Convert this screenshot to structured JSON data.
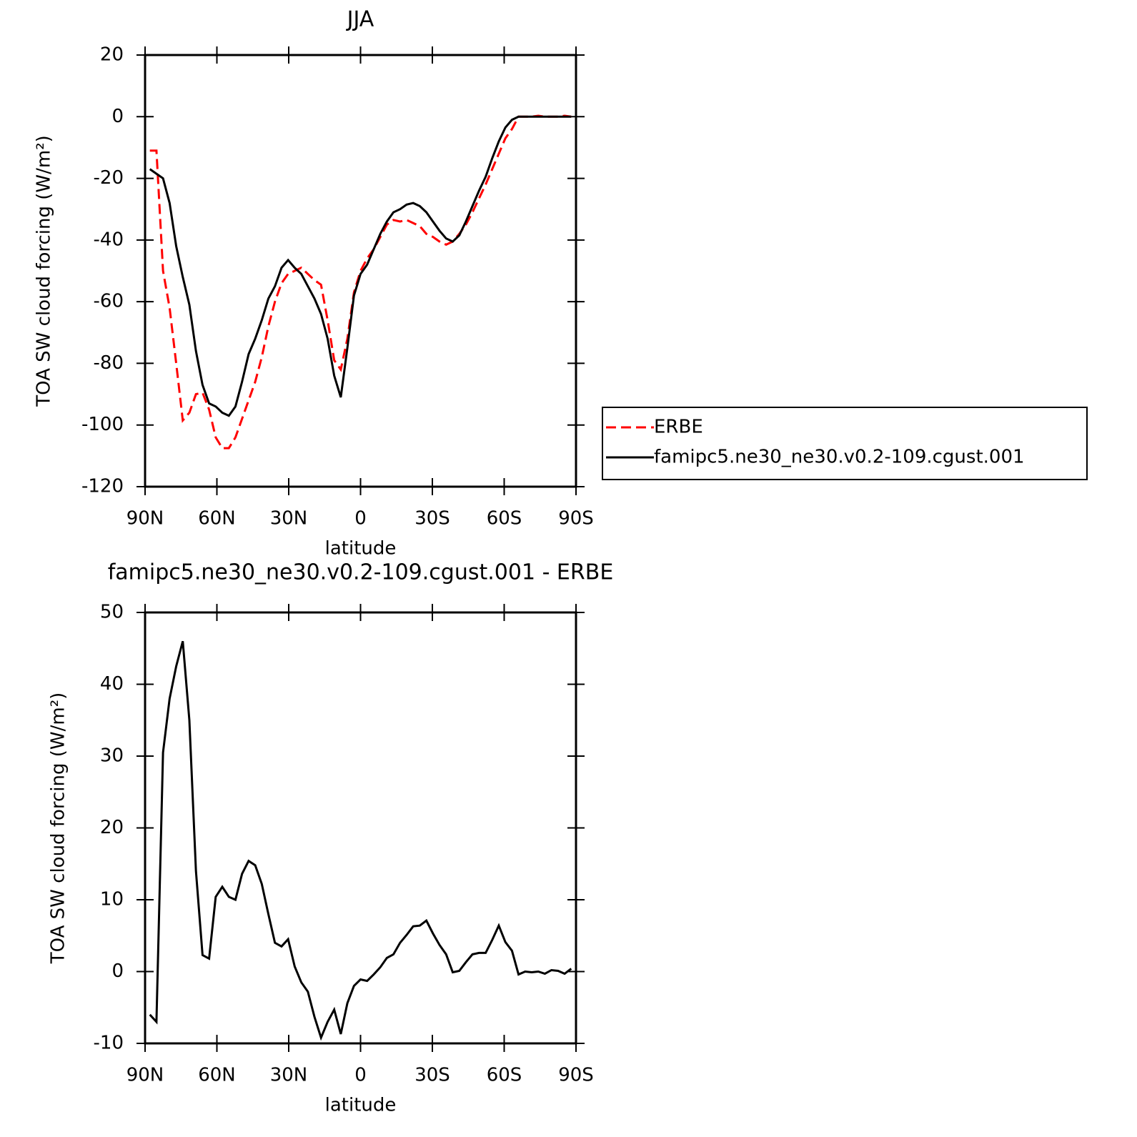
{
  "chart_data": [
    {
      "type": "line",
      "title": "JJA",
      "x_label": "latitude",
      "y_label": "TOA SW cloud forcing (W/m²)",
      "x": [
        88,
        85.25,
        82.5,
        79.75,
        77,
        74.25,
        71.5,
        68.75,
        66,
        63.25,
        60.5,
        57.75,
        55,
        52.25,
        49.5,
        46.75,
        44,
        41.25,
        38.5,
        35.75,
        33,
        30.25,
        27.5,
        24.75,
        22,
        19.25,
        16.5,
        13.75,
        11,
        8.25,
        5.5,
        2.75,
        0,
        -2.75,
        -5.5,
        -8.25,
        -11,
        -13.75,
        -16.5,
        -19.25,
        -22,
        -24.75,
        -27.5,
        -30.25,
        -33,
        -35.75,
        -38.5,
        -41.25,
        -44,
        -46.75,
        -49.5,
        -52.25,
        -55,
        -57.75,
        -60.5,
        -63.25,
        -66,
        -68.75,
        -71.5,
        -74.25,
        -77,
        -79.75,
        -82.5,
        -85.25,
        -88
      ],
      "series": [
        {
          "name": "ERBE",
          "color": "#ff0000",
          "dash": true,
          "values": [
            -11,
            -11,
            -50,
            -62,
            -80,
            -98.5,
            -96,
            -90,
            -89.5,
            -95,
            -104,
            -107.5,
            -107.5,
            -104,
            -98,
            -92,
            -86,
            -78,
            -68,
            -60,
            -54,
            -51,
            -50,
            -49,
            -51,
            -53,
            -54.5,
            -66,
            -79,
            -82,
            -72,
            -57,
            -50,
            -46,
            -43,
            -39,
            -35,
            -33.5,
            -34,
            -33.5,
            -34.5,
            -35.5,
            -38,
            -39,
            -40.5,
            -41.5,
            -40.5,
            -38,
            -35,
            -31,
            -26.5,
            -22,
            -17,
            -12,
            -7,
            -4,
            0,
            0,
            0,
            0.3,
            0,
            0,
            0,
            0.3,
            0
          ]
        },
        {
          "name": "famipc5.ne30_ne30.v0.2-109.cgust.001",
          "color": "#000000",
          "dash": false,
          "values": [
            -17,
            -18.5,
            -20,
            -28,
            -42,
            -52,
            -61,
            -76,
            -87,
            -93,
            -94,
            -96,
            -97,
            -94,
            -86,
            -77,
            -72,
            -66,
            -59,
            -55,
            -49,
            -46.5,
            -49,
            -51,
            -55,
            -59,
            -64,
            -72,
            -84,
            -91,
            -75,
            -58,
            -51,
            -48,
            -43,
            -38,
            -34,
            -31,
            -30,
            -28.5,
            -28,
            -29,
            -31,
            -34,
            -37,
            -39.5,
            -40.5,
            -38.5,
            -34,
            -29,
            -24,
            -19.5,
            -13.5,
            -8,
            -3.5,
            -1,
            0,
            0,
            0,
            0,
            0,
            0,
            0,
            0,
            0
          ]
        }
      ],
      "xlim": [
        90,
        -90
      ],
      "xticks": [
        {
          "value": 90,
          "label": "90N"
        },
        {
          "value": 60,
          "label": "60N"
        },
        {
          "value": 30,
          "label": "30N"
        },
        0,
        {
          "value": -30,
          "label": "30S"
        },
        {
          "value": -60,
          "label": "60S"
        },
        {
          "value": -90,
          "label": "90S"
        }
      ],
      "ylim": [
        -120,
        20
      ],
      "yticks": [
        -120,
        -100,
        -80,
        -60,
        -40,
        -20,
        0,
        20
      ],
      "legend": "right"
    },
    {
      "type": "line",
      "title": "famipc5.ne30_ne30.v0.2-109.cgust.001 - ERBE",
      "x_label": "latitude",
      "y_label": "TOA SW cloud forcing (W/m²)",
      "x": [
        88,
        85.25,
        82.5,
        79.75,
        77,
        74.25,
        71.5,
        68.75,
        66,
        63.25,
        60.5,
        57.75,
        55,
        52.25,
        49.5,
        46.75,
        44,
        41.25,
        38.5,
        35.75,
        33,
        30.25,
        27.5,
        24.75,
        22,
        19.25,
        16.5,
        13.75,
        11,
        8.25,
        5.5,
        2.75,
        0,
        -2.75,
        -5.5,
        -8.25,
        -11,
        -13.75,
        -16.5,
        -19.25,
        -22,
        -24.75,
        -27.5,
        -30.25,
        -33,
        -35.75,
        -38.5,
        -41.25,
        -44,
        -46.75,
        -49.5,
        -52.25,
        -55,
        -57.75,
        -60.5,
        -63.25,
        -66,
        -68.75,
        -71.5,
        -74.25,
        -77,
        -79.75,
        -82.5,
        -85.25,
        -88
      ],
      "series": [
        {
          "color": "#000000",
          "dash": false,
          "values": [
            -6,
            -7,
            30.5,
            38,
            42.5,
            46,
            35,
            14,
            2.3,
            1.8,
            10.4,
            11.8,
            10.4,
            10,
            13.6,
            15.4,
            14.8,
            12.2,
            8,
            4,
            3.5,
            4.5,
            0.7,
            -1.5,
            -2.8,
            -6.3,
            -9.2,
            -7,
            -5.3,
            -8.7,
            -4.4,
            -2,
            -1.1,
            -1.3,
            -0.4,
            0.6,
            1.9,
            2.4,
            4,
            5.1,
            6.3,
            6.4,
            7.1,
            5.3,
            3.7,
            2.4,
            -0.1,
            0.1,
            1.3,
            2.4,
            2.6,
            2.6,
            4.4,
            6.4,
            4.1,
            2.9,
            -0.4,
            0,
            -0.1,
            0,
            -0.3,
            0.2,
            0.1,
            -0.3,
            0.4
          ]
        }
      ],
      "xlim": [
        90,
        -90
      ],
      "xticks": [
        {
          "value": 90,
          "label": "90N"
        },
        {
          "value": 60,
          "label": "60N"
        },
        {
          "value": 30,
          "label": "30N"
        },
        0,
        {
          "value": -30,
          "label": "30S"
        },
        {
          "value": -60,
          "label": "60S"
        },
        {
          "value": -90,
          "label": "90S"
        }
      ],
      "ylim": [
        -10,
        50
      ],
      "yticks": [
        -10,
        0,
        10,
        20,
        30,
        40,
        50
      ]
    }
  ]
}
